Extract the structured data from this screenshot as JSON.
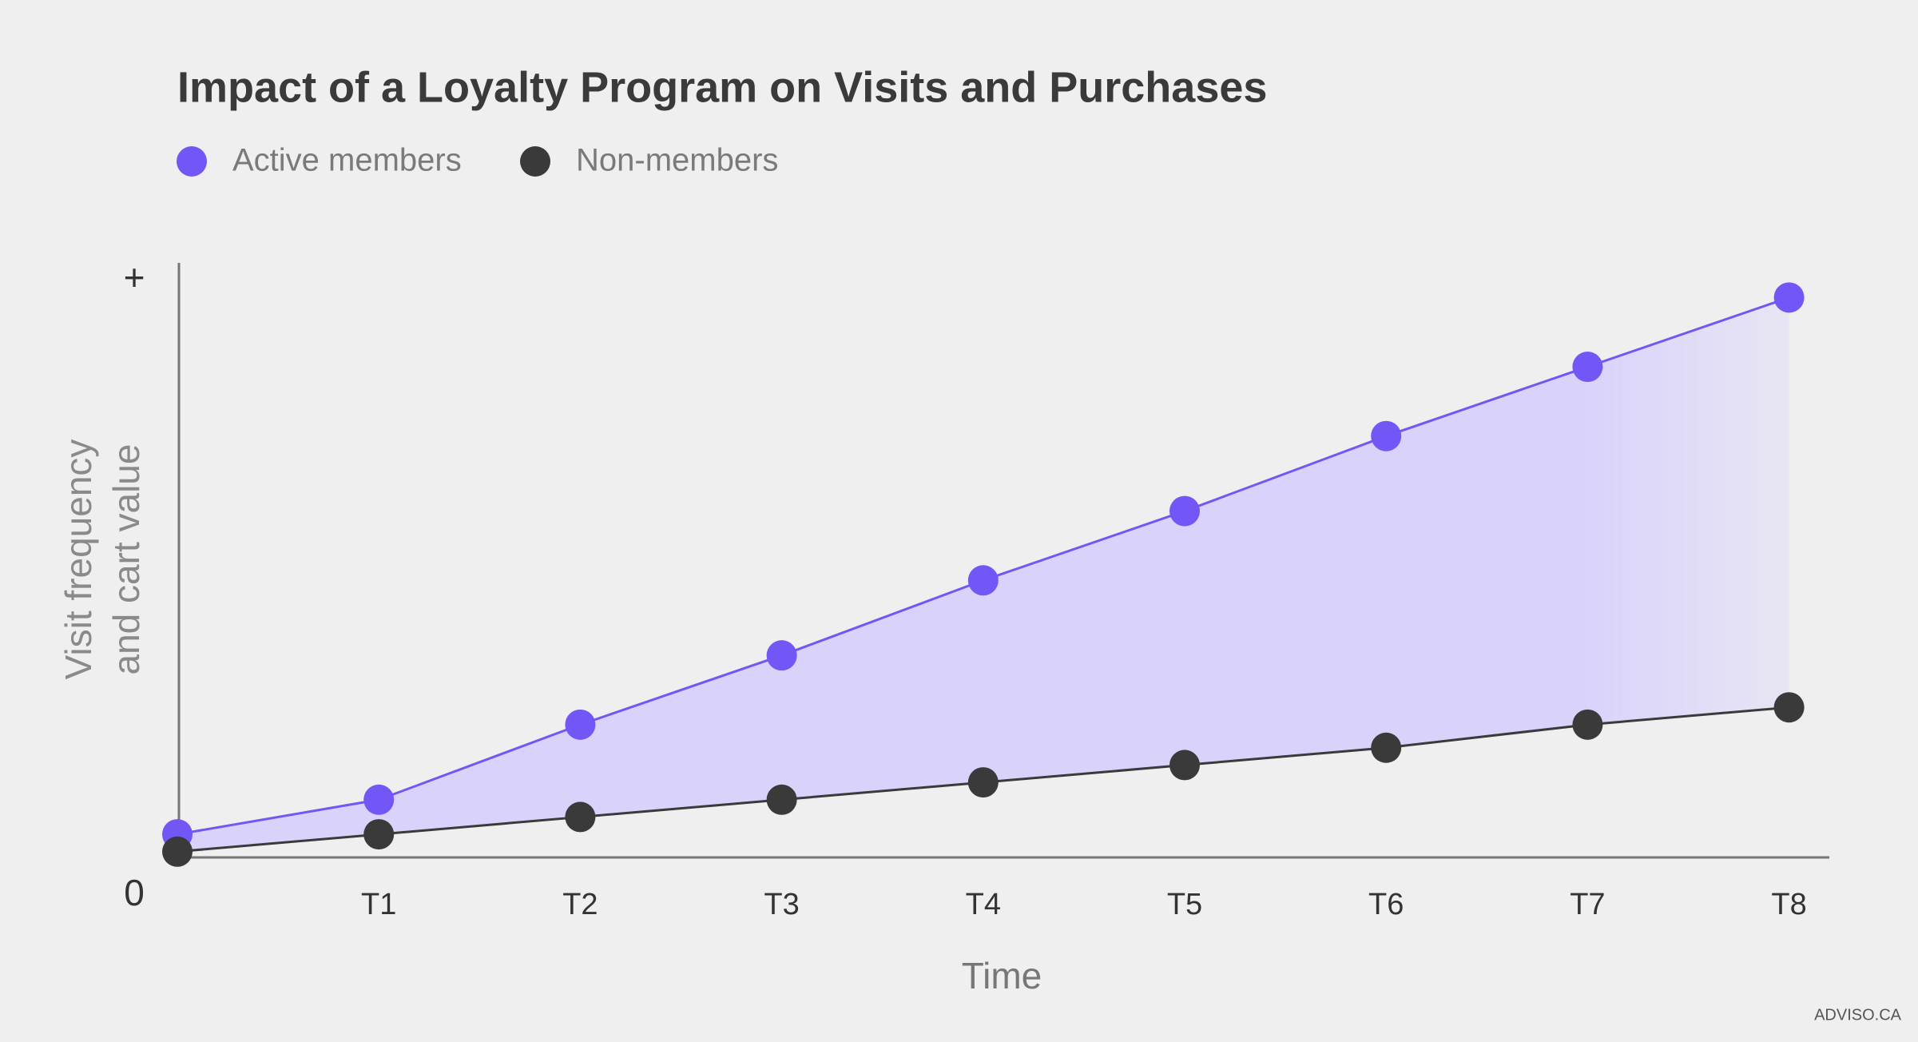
{
  "chart_data": {
    "type": "line",
    "title": "Impact of a Loyalty Program on Visits and Purchases",
    "x_label": "Time",
    "y_label": [
      "Visit frequency",
      "and cart value"
    ],
    "categories": [
      null,
      "T1",
      "T2",
      "T3",
      "T4",
      "T5",
      "T6",
      "T7",
      "T8"
    ],
    "series": [
      {
        "name": "Active members",
        "color": "#7357f6",
        "values": [
          4,
          10,
          23,
          35,
          48,
          60,
          73,
          85,
          97
        ]
      },
      {
        "name": "Non-members",
        "color": "#3a3a3a",
        "values": [
          1,
          4,
          7,
          10,
          13,
          16,
          19,
          23,
          26
        ]
      }
    ],
    "fill_between": true,
    "fill_color": "#d9d2fb",
    "ylim": [
      0,
      103
    ],
    "yticks": [
      0,
      {
        "value": 100,
        "label": "+"
      }
    ],
    "grid": false,
    "source": "ADVISO.CA"
  }
}
